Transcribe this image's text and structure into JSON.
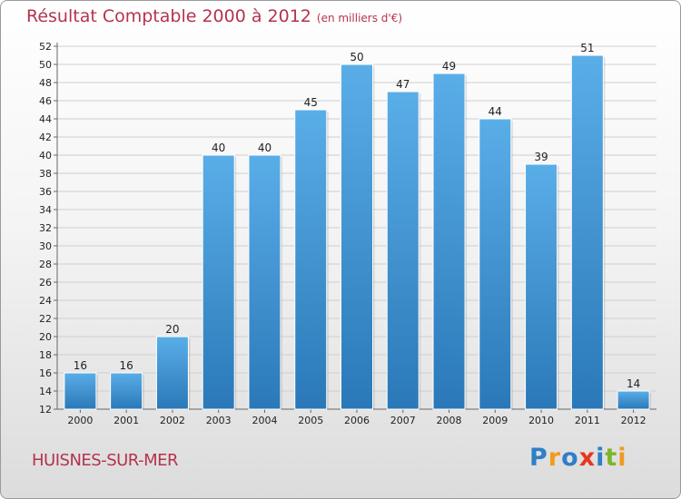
{
  "title": "Résultat Comptable 2000 à 2012",
  "subtitle": "(en milliers d'€)",
  "commune": "HUISNES-SUR-MER",
  "logo": {
    "text": "Proxiti",
    "letters": [
      "P",
      "r",
      "o",
      "x",
      "i",
      "t",
      "i"
    ],
    "colors": [
      "#2f7fc6",
      "#f29a1f",
      "#2f7fc6",
      "#e8361f",
      "#2f7fc6",
      "#7cb52c",
      "#f29a1f"
    ]
  },
  "colors": {
    "title": "#b5334d",
    "bar_top": "#5aaee8",
    "bar_bottom": "#2a78b8",
    "grid": "#cfcfcf"
  },
  "chart_data": {
    "type": "bar",
    "title": "Résultat Comptable 2000 à 2012",
    "subtitle": "(en milliers d'€)",
    "xlabel": "",
    "ylabel": "",
    "categories": [
      "2000",
      "2001",
      "2002",
      "2003",
      "2004",
      "2005",
      "2006",
      "2007",
      "2008",
      "2009",
      "2010",
      "2011",
      "2012"
    ],
    "values": [
      16,
      16,
      20,
      40,
      40,
      45,
      50,
      47,
      49,
      44,
      39,
      51,
      14
    ],
    "ylim": [
      12,
      52
    ],
    "yticks": [
      12,
      14,
      16,
      18,
      20,
      22,
      24,
      26,
      28,
      30,
      32,
      34,
      36,
      38,
      40,
      42,
      44,
      46,
      48,
      50,
      52
    ],
    "grid": true
  }
}
